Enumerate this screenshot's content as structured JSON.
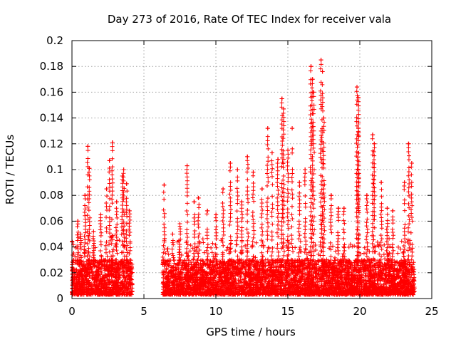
{
  "chart_data": {
    "type": "scatter",
    "title": "Day 273 of 2016, Rate Of TEC Index for receiver vala",
    "xlabel": "GPS time / hours",
    "ylabel": "ROTI / TECUs",
    "xlim": [
      0,
      25
    ],
    "ylim": [
      0,
      0.2
    ],
    "xticks": [
      0,
      5,
      10,
      15,
      20,
      25
    ],
    "xtick_labels": [
      "0",
      "5",
      "10",
      "15",
      "20",
      "25"
    ],
    "yticks": [
      0,
      0.02,
      0.04,
      0.06,
      0.08,
      0.1,
      0.12,
      0.14,
      0.16,
      0.18,
      0.2
    ],
    "ytick_labels": [
      "0",
      "0.02",
      "0.04",
      "0.06",
      "0.08",
      "0.1",
      "0.12",
      "0.14",
      "0.16",
      "0.18",
      "0.2"
    ],
    "grid": true,
    "marker": "+",
    "color": "#ff0000",
    "segments": [
      {
        "x_start": 0.0,
        "x_end": 4.2,
        "typical_range": [
          0.003,
          0.03
        ]
      },
      {
        "x_start": 6.3,
        "x_end": 23.8,
        "typical_range": [
          0.003,
          0.03
        ]
      }
    ],
    "peaks": [
      {
        "x": 0.4,
        "y": 0.06
      },
      {
        "x": 0.6,
        "y": 0.05
      },
      {
        "x": 0.9,
        "y": 0.08
      },
      {
        "x": 1.1,
        "y": 0.118
      },
      {
        "x": 1.2,
        "y": 0.101
      },
      {
        "x": 1.5,
        "y": 0.052
      },
      {
        "x": 2.0,
        "y": 0.065
      },
      {
        "x": 2.4,
        "y": 0.085
      },
      {
        "x": 2.6,
        "y": 0.107
      },
      {
        "x": 2.8,
        "y": 0.121
      },
      {
        "x": 3.1,
        "y": 0.075
      },
      {
        "x": 3.5,
        "y": 0.095
      },
      {
        "x": 3.6,
        "y": 0.1
      },
      {
        "x": 3.8,
        "y": 0.089
      },
      {
        "x": 4.0,
        "y": 0.068
      },
      {
        "x": 6.4,
        "y": 0.088
      },
      {
        "x": 7.0,
        "y": 0.05
      },
      {
        "x": 7.5,
        "y": 0.058
      },
      {
        "x": 8.0,
        "y": 0.103
      },
      {
        "x": 8.5,
        "y": 0.075
      },
      {
        "x": 8.8,
        "y": 0.078
      },
      {
        "x": 9.4,
        "y": 0.068
      },
      {
        "x": 10.0,
        "y": 0.065
      },
      {
        "x": 10.5,
        "y": 0.085
      },
      {
        "x": 11.0,
        "y": 0.105
      },
      {
        "x": 11.5,
        "y": 0.1
      },
      {
        "x": 11.8,
        "y": 0.075
      },
      {
        "x": 12.2,
        "y": 0.11
      },
      {
        "x": 12.6,
        "y": 0.098
      },
      {
        "x": 13.2,
        "y": 0.085
      },
      {
        "x": 13.6,
        "y": 0.132
      },
      {
        "x": 13.9,
        "y": 0.113
      },
      {
        "x": 14.3,
        "y": 0.108
      },
      {
        "x": 14.6,
        "y": 0.155
      },
      {
        "x": 14.7,
        "y": 0.147
      },
      {
        "x": 15.0,
        "y": 0.115
      },
      {
        "x": 15.3,
        "y": 0.132
      },
      {
        "x": 15.8,
        "y": 0.09
      },
      {
        "x": 16.2,
        "y": 0.1
      },
      {
        "x": 16.6,
        "y": 0.18
      },
      {
        "x": 16.7,
        "y": 0.17
      },
      {
        "x": 16.8,
        "y": 0.16
      },
      {
        "x": 17.3,
        "y": 0.185
      },
      {
        "x": 17.4,
        "y": 0.176
      },
      {
        "x": 17.5,
        "y": 0.14
      },
      {
        "x": 18.0,
        "y": 0.08
      },
      {
        "x": 18.5,
        "y": 0.07
      },
      {
        "x": 18.9,
        "y": 0.07
      },
      {
        "x": 19.8,
        "y": 0.164
      },
      {
        "x": 19.9,
        "y": 0.156
      },
      {
        "x": 19.9,
        "y": 0.132
      },
      {
        "x": 20.5,
        "y": 0.08
      },
      {
        "x": 20.9,
        "y": 0.127
      },
      {
        "x": 21.0,
        "y": 0.12
      },
      {
        "x": 21.5,
        "y": 0.09
      },
      {
        "x": 21.9,
        "y": 0.07
      },
      {
        "x": 22.3,
        "y": 0.068
      },
      {
        "x": 23.1,
        "y": 0.09
      },
      {
        "x": 23.4,
        "y": 0.12
      },
      {
        "x": 23.6,
        "y": 0.105
      }
    ]
  }
}
